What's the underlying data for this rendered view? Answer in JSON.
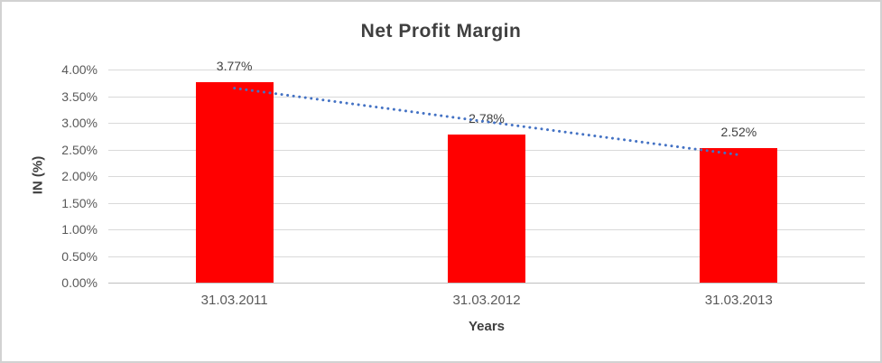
{
  "chart_data": {
    "type": "bar",
    "title": "Net Profit Margin",
    "categories": [
      "31.03.2011",
      "31.03.2012",
      "31.03.2013"
    ],
    "values": [
      3.77,
      2.78,
      2.52
    ],
    "data_labels": [
      "3.77%",
      "2.78%",
      "2.52%"
    ],
    "xlabel": "Years",
    "ylabel": "IN (%)",
    "ylim": [
      0,
      4
    ],
    "ytick_step": 0.5,
    "ytick_labels": [
      "4.00%",
      "3.50%",
      "3.00%",
      "2.50%",
      "2.00%",
      "1.50%",
      "1.00%",
      "0.50%",
      "0.00%"
    ],
    "grid": true,
    "legend": false,
    "bar_color": "#ff0000",
    "label_color": "#404040",
    "axis_text_color": "#595959",
    "gridline_color": "#d9d9d9",
    "axisline_color": "#bfbfbf",
    "trendline": {
      "type": "linear",
      "style": "dotted",
      "color": "#4472c4",
      "values": [
        3.65,
        3.02,
        2.4
      ]
    }
  }
}
